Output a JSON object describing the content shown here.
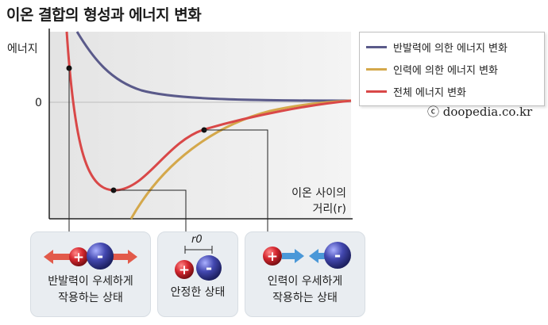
{
  "title": "이온 결합의 형성과 에너지 변화",
  "axes": {
    "y_label": "에너지",
    "zero_label": "0",
    "x_label_line1": "이온 사이의",
    "x_label_line2": "거리(r)"
  },
  "legend": [
    {
      "label": "반발력에 의한 에너지 변화",
      "color": "#5a5a8a"
    },
    {
      "label": "인력에 의한 에너지 변화",
      "color": "#d4a84b"
    },
    {
      "label": "전체 에너지 변화",
      "color": "#d94848"
    }
  ],
  "copyright": "ⓒ doopedia.co.kr",
  "cards": [
    {
      "line1": "반발력이 우세하게",
      "line2": "작용하는 상태"
    },
    {
      "line1": "안정한 상태",
      "line2": ""
    },
    {
      "line1": "인력이 우세하게",
      "line2": "작용하는 상태"
    }
  ],
  "ion_signs": {
    "cation": "+",
    "anion": "-"
  },
  "r0_label": "r0",
  "colors": {
    "repulsion": "#5a5a8a",
    "attraction": "#d4a84b",
    "total": "#d94848",
    "cation": "#c8202a",
    "anion": "#3a3f9a",
    "arrow_red": "#e25a4a",
    "arrow_blue": "#4a98d8"
  }
}
